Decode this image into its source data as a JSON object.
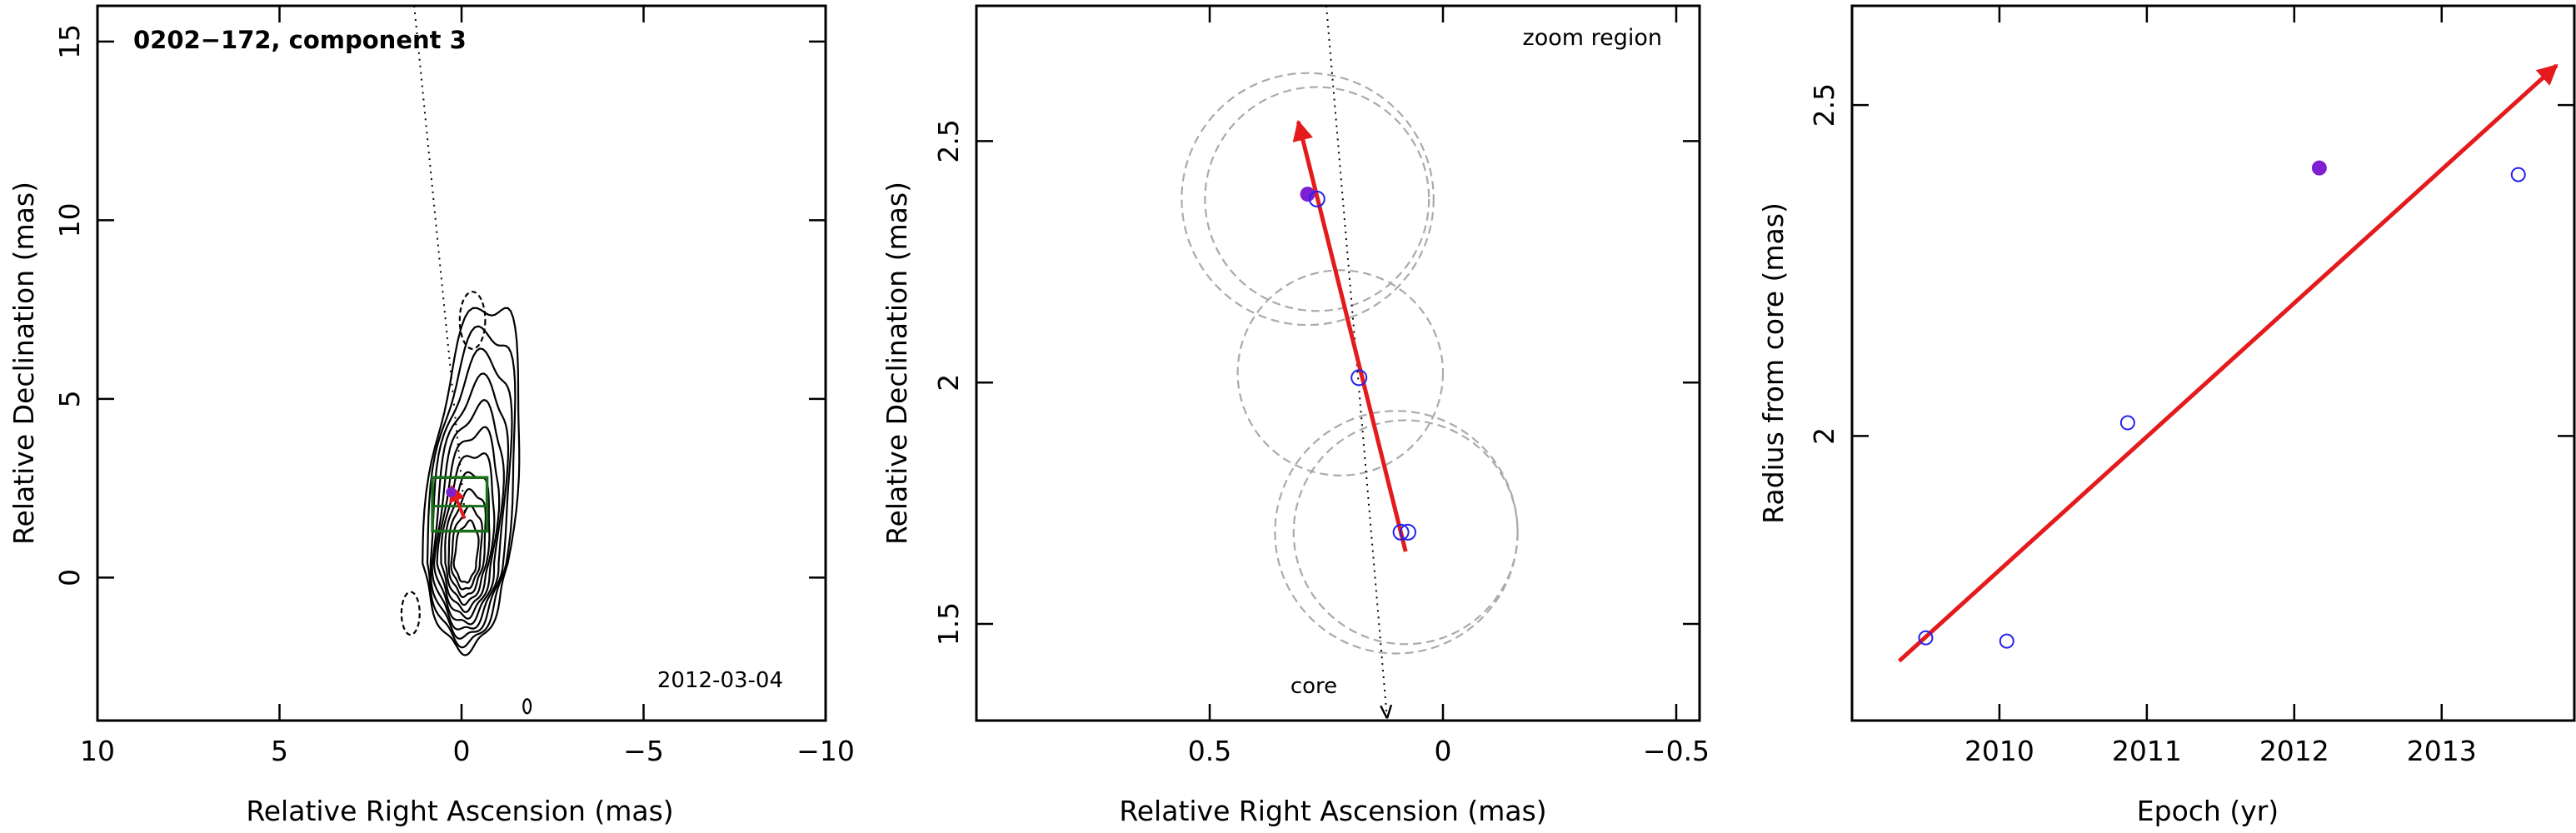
{
  "colors": {
    "arrow": "#e41a1c",
    "filled_point": "#7f1fd4",
    "open_point": "#2222ee",
    "box": "#1a6e1a",
    "contour": "#000000",
    "circle": "#aaaaaa"
  },
  "chart_data": [
    {
      "type": "contour",
      "title": "0202−172, component 3",
      "annotation": "2012-03-04",
      "xlabel": "Relative Right Ascension (mas)",
      "ylabel": "Relative Declination (mas)",
      "xlim": [
        10,
        -10
      ],
      "ylim": [
        -4,
        16
      ],
      "xticks": [
        10,
        5,
        0,
        -5,
        -10
      ],
      "xticklabels": [
        "10",
        "5",
        "0",
        "−5",
        "−10"
      ],
      "yticks": [
        0,
        5,
        10,
        15
      ],
      "yticklabels": [
        "0",
        "5",
        "10",
        "15"
      ],
      "trajectory_line": {
        "from": [
          1.3,
          16
        ],
        "to": [
          -0.1,
          1.7
        ]
      },
      "zoom_box": {
        "x": [
          0.8,
          -0.7
        ],
        "y": [
          1.3,
          2.8
        ]
      },
      "zoom_box_inner_y": 2.0,
      "contour_peak": [
        -0.1,
        0.4
      ],
      "arrow": {
        "from": [
          -0.08,
          1.65
        ],
        "to": [
          0.28,
          2.55
        ]
      },
      "filled_point": [
        0.29,
        2.39
      ]
    },
    {
      "type": "scatter",
      "title": "zoom region",
      "annotation": "core",
      "xlabel": "Relative Right Ascension (mas)",
      "ylabel": "Relative Declination (mas)",
      "xlim": [
        1.0,
        -0.55
      ],
      "ylim": [
        1.3,
        2.78
      ],
      "xticks": [
        0.5,
        0,
        -0.5
      ],
      "xticklabels": [
        "0.5",
        "0",
        "−0.5"
      ],
      "yticks": [
        1.5,
        2,
        2.5
      ],
      "yticklabels": [
        "1.5",
        "2",
        "2.5"
      ],
      "open_points": [
        [
          0.27,
          2.38
        ],
        [
          0.18,
          2.01
        ],
        [
          0.09,
          1.69
        ],
        [
          0.075,
          1.69
        ]
      ],
      "filled_points": [
        [
          0.29,
          2.39
        ]
      ],
      "error_circles": [
        {
          "center": [
            0.29,
            2.38
          ],
          "r": 0.27
        },
        {
          "center": [
            0.27,
            2.38
          ],
          "r": 0.24
        },
        {
          "center": [
            0.22,
            2.02
          ],
          "r": 0.22
        },
        {
          "center": [
            0.1,
            1.69
          ],
          "r": 0.26
        },
        {
          "center": [
            0.08,
            1.69
          ],
          "r": 0.24
        }
      ],
      "arrow": {
        "from": [
          0.08,
          1.65
        ],
        "to": [
          0.31,
          2.54
        ]
      },
      "trajectory_line": {
        "from": [
          0.25,
          2.78
        ],
        "to": [
          0.12,
          1.3
        ]
      }
    },
    {
      "type": "scatter",
      "xlabel": "Epoch (yr)",
      "ylabel": "Radius from core (mas)",
      "xlim": [
        2009.0,
        2013.9
      ],
      "ylim": [
        1.57,
        2.65
      ],
      "xticks": [
        2010,
        2011,
        2012,
        2013
      ],
      "xticklabels": [
        "2010",
        "2011",
        "2012",
        "2013"
      ],
      "yticks": [
        2,
        2.5
      ],
      "yticklabels": [
        "2",
        "2.5"
      ],
      "open_points": [
        [
          2009.5,
          1.695
        ],
        [
          2010.05,
          1.69
        ],
        [
          2010.87,
          2.02
        ],
        [
          2013.52,
          2.395
        ]
      ],
      "filled_points": [
        [
          2012.17,
          2.405
        ]
      ],
      "fit": {
        "from": [
          2009.32,
          1.66
        ],
        "to": [
          2013.78,
          2.56
        ]
      }
    }
  ]
}
